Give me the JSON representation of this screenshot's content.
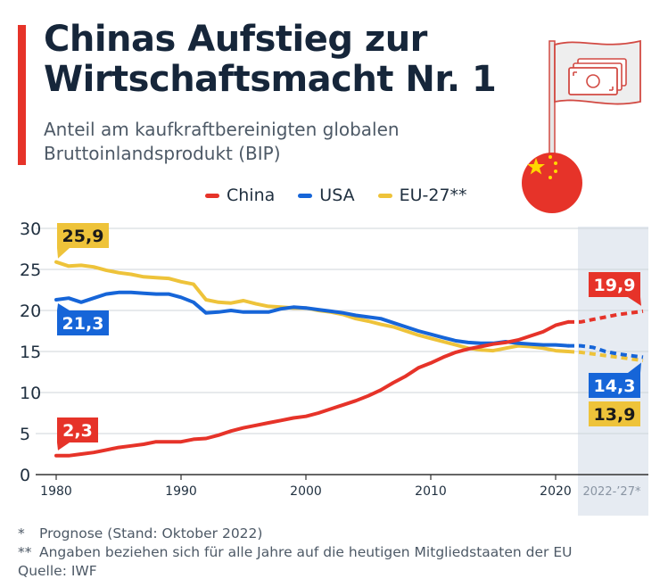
{
  "header": {
    "title_line1": "Chinas Aufstieg zur",
    "title_line2": "Wirtschaftsmacht Nr. 1",
    "subtitle_line1": "Anteil am kaufkraftbereinigten globalen",
    "subtitle_line2": "Bruttoinlandsprodukt (BIP)"
  },
  "colors": {
    "accent": "#e63329",
    "china": "#e63329",
    "usa": "#1665d8",
    "eu": "#eec33a",
    "forecast_band": "#e6ebf2"
  },
  "chart_data": {
    "type": "line",
    "title": "Chinas Aufstieg zur Wirtschaftsmacht Nr. 1",
    "subtitle": "Anteil am kaufkraftbereinigten globalen Bruttoinlandsprodukt (BIP)",
    "xlabel": "",
    "ylabel": "",
    "xlim": [
      1980,
      2027
    ],
    "ylim": [
      0,
      30
    ],
    "y_ticks": [
      "0",
      "5",
      "10",
      "15",
      "20",
      "25",
      "30"
    ],
    "x_ticks": [
      "1980",
      "1990",
      "2000",
      "2010",
      "2020"
    ],
    "forecast_label": "2022-’27*",
    "forecast_start": 2022,
    "grid": true,
    "legend": "top-center",
    "series": [
      {
        "name": "China",
        "color": "#e63329",
        "x": [
          1980,
          1981,
          1982,
          1983,
          1984,
          1985,
          1986,
          1987,
          1988,
          1989,
          1990,
          1991,
          1992,
          1993,
          1994,
          1995,
          1996,
          1997,
          1998,
          1999,
          2000,
          2001,
          2002,
          2003,
          2004,
          2005,
          2006,
          2007,
          2008,
          2009,
          2010,
          2011,
          2012,
          2013,
          2014,
          2015,
          2016,
          2017,
          2018,
          2019,
          2020,
          2021,
          2022,
          2023,
          2024,
          2025,
          2026,
          2027
        ],
        "values": [
          2.3,
          2.3,
          2.5,
          2.7,
          3.0,
          3.3,
          3.5,
          3.7,
          4.0,
          4.0,
          4.0,
          4.3,
          4.4,
          4.8,
          5.3,
          5.7,
          6.0,
          6.3,
          6.6,
          6.9,
          7.1,
          7.5,
          8.0,
          8.5,
          9.0,
          9.6,
          10.3,
          11.2,
          12.0,
          13.0,
          13.6,
          14.3,
          14.9,
          15.3,
          15.6,
          15.9,
          16.1,
          16.4,
          16.9,
          17.4,
          18.2,
          18.6,
          18.6,
          18.9,
          19.2,
          19.5,
          19.7,
          19.9
        ],
        "forecast_from": 2021,
        "start_label": "2,3",
        "end_label": "19,9"
      },
      {
        "name": "USA",
        "color": "#1665d8",
        "x": [
          1980,
          1981,
          1982,
          1983,
          1984,
          1985,
          1986,
          1987,
          1988,
          1989,
          1990,
          1991,
          1992,
          1993,
          1994,
          1995,
          1996,
          1997,
          1998,
          1999,
          2000,
          2001,
          2002,
          2003,
          2004,
          2005,
          2006,
          2007,
          2008,
          2009,
          2010,
          2011,
          2012,
          2013,
          2014,
          2015,
          2016,
          2017,
          2018,
          2019,
          2020,
          2021,
          2022,
          2023,
          2024,
          2025,
          2026,
          2027
        ],
        "values": [
          21.3,
          21.5,
          21.0,
          21.5,
          22.0,
          22.2,
          22.2,
          22.1,
          22.0,
          22.0,
          21.6,
          21.0,
          19.7,
          19.8,
          20.0,
          19.8,
          19.8,
          19.8,
          20.2,
          20.4,
          20.3,
          20.1,
          19.9,
          19.7,
          19.4,
          19.2,
          19.0,
          18.5,
          18.0,
          17.5,
          17.1,
          16.7,
          16.3,
          16.1,
          16.0,
          16.0,
          16.2,
          16.0,
          15.9,
          15.8,
          15.8,
          15.7,
          15.7,
          15.5,
          15.0,
          14.7,
          14.5,
          14.3
        ],
        "forecast_from": 2021,
        "start_label": "21,3",
        "end_label": "14,3"
      },
      {
        "name": "EU-27**",
        "color": "#eec33a",
        "x": [
          1980,
          1981,
          1982,
          1983,
          1984,
          1985,
          1986,
          1987,
          1988,
          1989,
          1990,
          1991,
          1992,
          1993,
          1994,
          1995,
          1996,
          1997,
          1998,
          1999,
          2000,
          2001,
          2002,
          2003,
          2004,
          2005,
          2006,
          2007,
          2008,
          2009,
          2010,
          2011,
          2012,
          2013,
          2014,
          2015,
          2016,
          2017,
          2018,
          2019,
          2020,
          2021,
          2022,
          2023,
          2024,
          2025,
          2026,
          2027
        ],
        "values": [
          25.9,
          25.4,
          25.5,
          25.3,
          24.9,
          24.6,
          24.4,
          24.1,
          24.0,
          23.9,
          23.5,
          23.2,
          21.3,
          21.0,
          20.9,
          21.2,
          20.8,
          20.5,
          20.4,
          20.3,
          20.3,
          20.0,
          19.8,
          19.5,
          19.0,
          18.7,
          18.3,
          18.0,
          17.5,
          17.0,
          16.6,
          16.2,
          15.8,
          15.4,
          15.2,
          15.1,
          15.4,
          15.7,
          15.6,
          15.4,
          15.1,
          15.0,
          14.9,
          14.7,
          14.5,
          14.3,
          14.1,
          13.9
        ],
        "forecast_from": 2021,
        "start_label": "25,9",
        "end_label": "13,9"
      }
    ]
  },
  "footnotes": [
    {
      "mark": "*",
      "text": "Prognose (Stand: Oktober 2022)"
    },
    {
      "mark": "**",
      "text": "Angaben beziehen sich für alle Jahre auf die heutigen Mitgliedstaaten der EU"
    },
    {
      "mark": "",
      "text": "Quelle: IWF"
    }
  ],
  "icons": {
    "flag": "money-flag-icon",
    "china_flag": "china-flag-icon"
  }
}
